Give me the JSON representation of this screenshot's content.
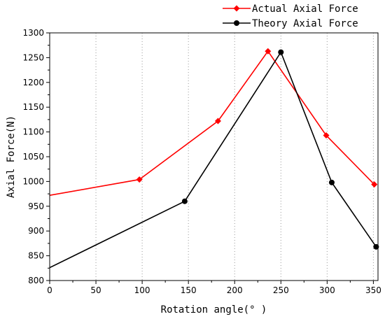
{
  "chart_data": {
    "type": "line",
    "xlabel": "Rotation angle(° )",
    "ylabel": "Axial Force(N)",
    "xlim": [
      0,
      355
    ],
    "ylim": [
      800,
      1300
    ],
    "xticks": [
      "0",
      "50",
      "100",
      "150",
      "200",
      "250",
      "300",
      "350"
    ],
    "yticks": [
      "800",
      "850",
      "900",
      "950",
      "1000",
      "1050",
      "1100",
      "1150",
      "1200",
      "1250",
      "1300"
    ],
    "grid": "vertical dotted",
    "legend_position": "top-right",
    "series": [
      {
        "name": "Actual Axial Force",
        "color": "#ff0000",
        "marker": "diamond",
        "points": [
          [
            0,
            972
          ],
          [
            97,
            1004
          ],
          [
            182,
            1122
          ],
          [
            236,
            1263
          ],
          [
            299,
            1093
          ],
          [
            351,
            994
          ]
        ],
        "marked": [
          1,
          2,
          3,
          4,
          5
        ]
      },
      {
        "name": "Theory Axial Force",
        "color": "#000000",
        "marker": "circle",
        "points": [
          [
            0,
            826
          ],
          [
            146,
            960
          ],
          [
            250,
            1261
          ],
          [
            305,
            998
          ],
          [
            353,
            868
          ]
        ],
        "marked": [
          1,
          2,
          3,
          4
        ]
      }
    ]
  }
}
